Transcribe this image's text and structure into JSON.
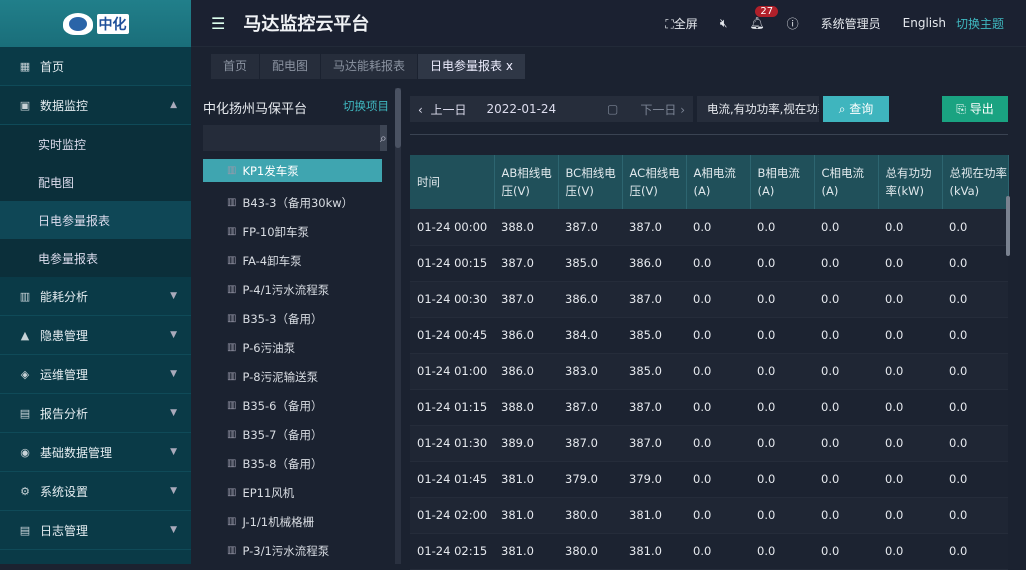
{
  "logo": {
    "text": "中化"
  },
  "sidebar": {
    "items": [
      {
        "label": "首页",
        "icon": "home-icon",
        "sym": "▦"
      },
      {
        "label": "数据监控",
        "icon": "monitor-icon",
        "sym": "▣",
        "open": true,
        "children": [
          "实时监控",
          "配电图",
          "日电参量报表",
          "电参量报表"
        ],
        "active_child": 2
      },
      {
        "label": "能耗分析",
        "icon": "bar-chart-icon",
        "sym": "▥"
      },
      {
        "label": "隐患管理",
        "icon": "warning-icon",
        "sym": "▲"
      },
      {
        "label": "运维管理",
        "icon": "wrench-icon",
        "sym": "◈"
      },
      {
        "label": "报告分析",
        "icon": "report-icon",
        "sym": "▤"
      },
      {
        "label": "基础数据管理",
        "icon": "database-icon",
        "sym": "◉"
      },
      {
        "label": "系统设置",
        "icon": "settings-icon",
        "sym": "⚙"
      },
      {
        "label": "日志管理",
        "icon": "log-icon",
        "sym": "▤"
      }
    ]
  },
  "header": {
    "title": "马达监控云平台",
    "fullscreen": "全屏",
    "notifications": "27",
    "user": "系统管理员",
    "language": "English",
    "theme": "切换主题"
  },
  "tabs": [
    {
      "label": "首页"
    },
    {
      "label": "配电图"
    },
    {
      "label": "马达能耗报表"
    },
    {
      "label": "日电参量报表 x",
      "active": true
    }
  ],
  "left": {
    "title": "中化扬州马保平台",
    "switch": "切换项目",
    "search_placeholder": "",
    "items": [
      "KP1发车泵",
      "B43-3（备用30kw）",
      "FP-10卸车泵",
      "FA-4卸车泵",
      "P-4/1污水流程泵",
      "B35-3（备用）",
      "P-6污油泵",
      "P-8污泥输送泵",
      "B35-6（备用）",
      "B35-7（备用）",
      "B35-8（备用）",
      "EP11风机",
      "J-1/1机械格栅",
      "P-3/1污水流程泵"
    ],
    "selected": 0
  },
  "toolbar": {
    "prev": "上一日",
    "date": "2022-01-24",
    "next": "下一日",
    "params": "电流,有功功率,视在功率",
    "query": "查询",
    "export": "导出"
  },
  "table": {
    "columns": [
      "时间",
      "AB相线电压(V)",
      "BC相线电压(V)",
      "AC相线电压(V)",
      "A相电流(A)",
      "B相电流(A)",
      "C相电流(A)",
      "总有功功率(kW)",
      "总视在功率(kVa)"
    ],
    "rows": [
      [
        "01-24 00:00",
        "388.0",
        "387.0",
        "387.0",
        "0.0",
        "0.0",
        "0.0",
        "0.0",
        "0.0"
      ],
      [
        "01-24 00:15",
        "387.0",
        "385.0",
        "386.0",
        "0.0",
        "0.0",
        "0.0",
        "0.0",
        "0.0"
      ],
      [
        "01-24 00:30",
        "387.0",
        "386.0",
        "387.0",
        "0.0",
        "0.0",
        "0.0",
        "0.0",
        "0.0"
      ],
      [
        "01-24 00:45",
        "386.0",
        "384.0",
        "385.0",
        "0.0",
        "0.0",
        "0.0",
        "0.0",
        "0.0"
      ],
      [
        "01-24 01:00",
        "386.0",
        "383.0",
        "385.0",
        "0.0",
        "0.0",
        "0.0",
        "0.0",
        "0.0"
      ],
      [
        "01-24 01:15",
        "388.0",
        "387.0",
        "387.0",
        "0.0",
        "0.0",
        "0.0",
        "0.0",
        "0.0"
      ],
      [
        "01-24 01:30",
        "389.0",
        "387.0",
        "387.0",
        "0.0",
        "0.0",
        "0.0",
        "0.0",
        "0.0"
      ],
      [
        "01-24 01:45",
        "381.0",
        "379.0",
        "379.0",
        "0.0",
        "0.0",
        "0.0",
        "0.0",
        "0.0"
      ],
      [
        "01-24 02:00",
        "381.0",
        "380.0",
        "381.0",
        "0.0",
        "0.0",
        "0.0",
        "0.0",
        "0.0"
      ],
      [
        "01-24 02:15",
        "381.0",
        "380.0",
        "381.0",
        "0.0",
        "0.0",
        "0.0",
        "0.0",
        "0.0"
      ]
    ]
  }
}
